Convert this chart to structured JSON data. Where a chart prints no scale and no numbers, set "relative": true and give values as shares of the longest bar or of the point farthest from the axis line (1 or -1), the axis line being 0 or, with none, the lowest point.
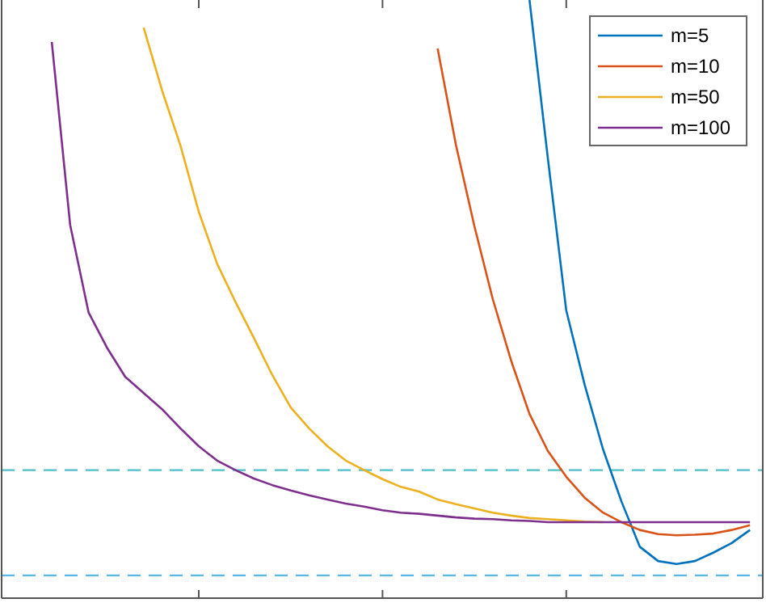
{
  "chart_data": {
    "type": "line",
    "relative": true,
    "legend": "top right",
    "line_style": "solid",
    "categories": [
      null,
      null,
      null,
      null,
      null,
      null,
      null,
      null,
      null,
      null,
      null,
      null,
      null,
      null,
      null,
      null,
      null,
      null,
      null,
      null,
      null,
      null,
      null,
      null,
      null,
      null,
      null,
      null,
      null,
      null,
      null,
      null,
      null,
      null,
      null,
      null,
      null,
      null,
      null,
      null,
      null
    ],
    "series": [
      {
        "name": "m=5",
        "color": "#0072bd",
        "values": [
          null,
          null,
          null,
          null,
          null,
          null,
          null,
          null,
          null,
          null,
          null,
          null,
          null,
          null,
          null,
          null,
          null,
          null,
          null,
          null,
          null,
          null,
          null,
          null,
          null,
          null,
          null,
          null,
          1,
          0.735,
          0.481,
          0.357,
          0.249,
          0.162,
          0.086,
          0.062,
          0.057,
          0.062,
          0.076,
          0.092,
          0.114
        ]
      },
      {
        "name": "m=10",
        "color": "#d95319",
        "values": [
          null,
          null,
          null,
          null,
          null,
          null,
          null,
          null,
          null,
          null,
          null,
          null,
          null,
          null,
          null,
          null,
          null,
          null,
          null,
          null,
          null,
          null,
          null,
          0.919,
          0.757,
          0.622,
          0.5,
          0.397,
          0.308,
          0.246,
          0.203,
          0.168,
          0.143,
          0.127,
          0.114,
          0.107,
          0.105,
          0.106,
          0.108,
          0.114,
          0.122
        ]
      },
      {
        "name": "m=50",
        "color": "#edb120",
        "values": [
          null,
          null,
          null,
          null,
          null,
          null,
          null,
          0.954,
          0.849,
          0.757,
          0.646,
          0.559,
          0.495,
          0.435,
          0.373,
          0.319,
          0.284,
          0.254,
          0.23,
          0.214,
          0.199,
          0.186,
          0.178,
          0.165,
          0.157,
          0.15,
          0.143,
          0.138,
          0.134,
          0.132,
          0.13,
          0.128,
          0.127,
          null,
          null,
          null,
          null,
          null,
          null,
          null,
          null
        ]
      },
      {
        "name": "m=100",
        "color": "#7e2f8e",
        "values": [
          null,
          null,
          0.93,
          0.624,
          0.478,
          0.419,
          0.37,
          0.343,
          0.316,
          0.284,
          0.254,
          0.23,
          0.214,
          0.2,
          0.189,
          0.18,
          0.172,
          0.165,
          0.158,
          0.153,
          0.147,
          0.143,
          0.141,
          0.138,
          0.135,
          0.133,
          0.132,
          0.13,
          0.129,
          0.127,
          0.127,
          0.127,
          0.127,
          0.127,
          0.127,
          0.127,
          0.127,
          0.127,
          0.127,
          0.127,
          0.127
        ]
      }
    ],
    "ref_lines": [
      {
        "axis": "y",
        "value": 0.214,
        "color": "#4dc0c8",
        "line_style": "dashed"
      },
      {
        "axis": "y",
        "value": 0.038,
        "color": "#5ab8e6",
        "line_style": "dashed"
      }
    ]
  }
}
